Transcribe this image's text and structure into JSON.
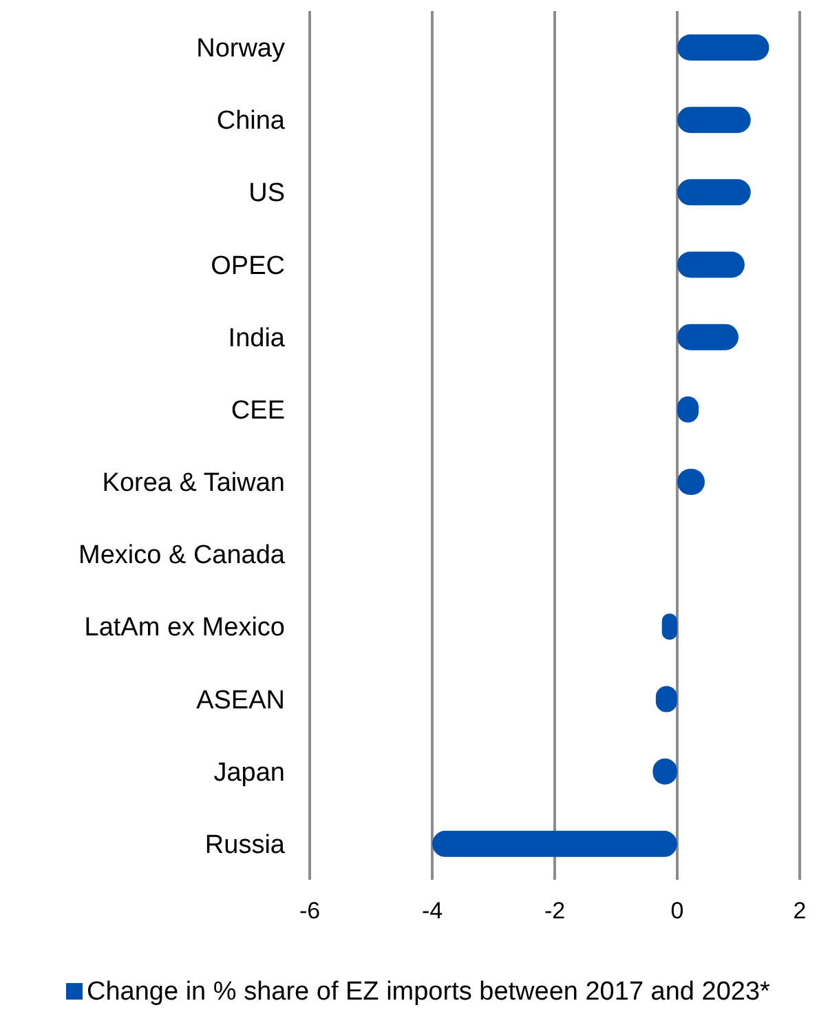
{
  "chart_data": {
    "type": "bar",
    "orientation": "horizontal",
    "categories": [
      "Norway",
      "China",
      "US",
      "OPEC",
      "India",
      "CEE",
      "Korea & Taiwan",
      "Mexico & Canada",
      "LatAm ex Mexico",
      "ASEAN",
      "Japan",
      "Russia"
    ],
    "series": [
      {
        "name": "Change in % share of EZ imports between 2017 and 2023*",
        "color": "#0050b0",
        "values": [
          1.5,
          1.2,
          1.2,
          1.1,
          1.0,
          0.35,
          0.45,
          0,
          -0.25,
          -0.35,
          -0.4,
          -4.0
        ]
      }
    ],
    "xlim": [
      -6,
      2
    ],
    "xticks": [
      -6,
      -4,
      -2,
      0,
      2
    ],
    "grid": "x",
    "legend": "bottom"
  }
}
